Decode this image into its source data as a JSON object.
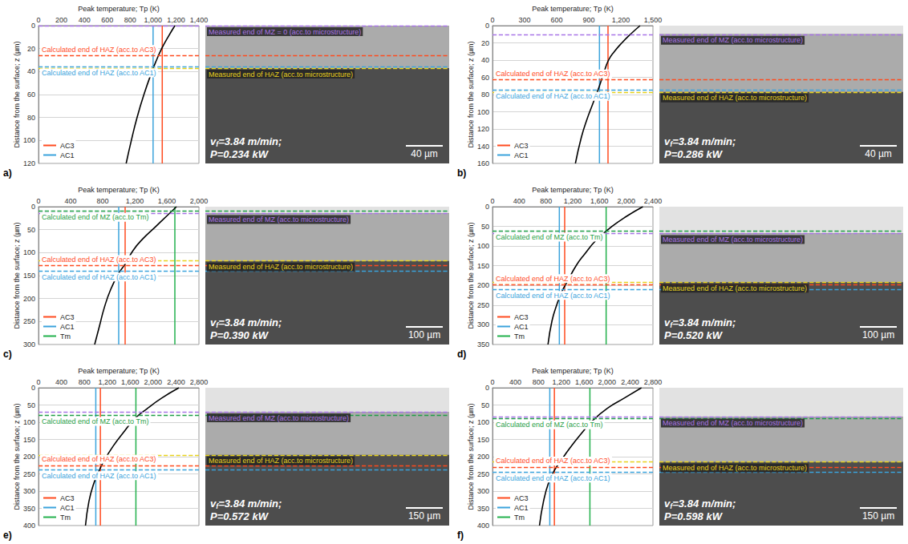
{
  "chart_data": [
    {
      "type": "line",
      "panel": "a)",
      "x_label": "Peak temperature; Tp (K)",
      "y_label": "Distance from the surface; z (µm)",
      "xlim": [
        0,
        1400
      ],
      "xticks": [
        0,
        200,
        400,
        600,
        800,
        1000,
        1200,
        1400
      ],
      "ylim": [
        0,
        120
      ],
      "yticks": [
        0,
        20,
        40,
        60,
        80,
        100,
        120
      ],
      "grid": true,
      "legend": "lower left",
      "series": [
        {
          "color": "#000000",
          "x": [
            1190,
            1130,
            1075,
            1030,
            990,
            920,
            860,
            810,
            765
          ],
          "y": [
            0,
            10,
            20,
            30,
            40,
            60,
            80,
            100,
            120
          ]
        }
      ],
      "reference_lines": [
        {
          "name": "AC3",
          "value": 1080,
          "color": "#ff4b1f"
        },
        {
          "name": "AC1",
          "value": 1000,
          "color": "#3ba3dc"
        }
      ],
      "calculated_lines": [
        {
          "text": "Calculated end of HAZ (acc.to AC3)",
          "value": 26,
          "color": "#ff4b1f"
        },
        {
          "text": "Calculated end of HAZ (acc.to AC1)",
          "value": 36,
          "color": "#3ba3dc"
        }
      ],
      "measured_lines": [
        {
          "text": "Measured end of MZ = 0 (acc.to microstructure)",
          "value": 0,
          "color": "#a874e6"
        },
        {
          "text": "Measured end of HAZ (acc.to microstructure)",
          "value": 37,
          "color": "#e8d21d"
        }
      ],
      "micrograph": {
        "speed": {
          "symbol": "v",
          "subscript": "f",
          "value": "=3.84 m/min;"
        },
        "power": "P=0.234 kW",
        "scale_bar": "40 µm"
      }
    },
    {
      "type": "line",
      "panel": "b)",
      "x_label": "Peak temperature; Tp (K)",
      "y_label": "Distance from the surface; z (µm)",
      "xlim": [
        0,
        1500
      ],
      "xticks": [
        0,
        300,
        600,
        900,
        1200,
        1500
      ],
      "ylim": [
        0,
        160
      ],
      "yticks": [
        0,
        20,
        40,
        60,
        80,
        100,
        120,
        140,
        160
      ],
      "grid": true,
      "legend": "lower left",
      "series": [
        {
          "color": "#000000",
          "x": [
            1380,
            1290,
            1210,
            1140,
            1085,
            1040,
            1000,
            940,
            880,
            830,
            775
          ],
          "y": [
            0,
            10,
            20,
            30,
            40,
            55,
            70,
            90,
            110,
            130,
            160
          ]
        }
      ],
      "reference_lines": [
        {
          "name": "AC3",
          "value": 1080,
          "color": "#ff4b1f"
        },
        {
          "name": "AC1",
          "value": 1000,
          "color": "#3ba3dc"
        }
      ],
      "calculated_lines": [
        {
          "text": "Calculated end of HAZ (acc.to AC3)",
          "value": 63,
          "color": "#ff4b1f"
        },
        {
          "text": "Calculated end of HAZ (acc.to AC1)",
          "value": 75,
          "color": "#3ba3dc"
        }
      ],
      "measured_lines": [
        {
          "text": "Measured end of MZ (acc.to microstructure)",
          "value": 10,
          "color": "#a874e6"
        },
        {
          "text": "Measured end of HAZ (acc.to microstructure)",
          "value": 77,
          "color": "#e8d21d"
        }
      ],
      "micrograph": {
        "speed": {
          "symbol": "v",
          "subscript": "f",
          "value": "=3.84 m/min;"
        },
        "power": "P=0.286 kW",
        "scale_bar": "40 µm"
      }
    },
    {
      "type": "line",
      "panel": "c)",
      "x_label": "Peak temperature; Tp (K)",
      "y_label": "Distance from the surface; z (µm)",
      "xlim": [
        0,
        2000
      ],
      "xticks": [
        0,
        400,
        800,
        1200,
        1600,
        2000
      ],
      "ylim": [
        0,
        300
      ],
      "yticks": [
        0,
        50,
        100,
        150,
        200,
        250,
        300
      ],
      "grid": true,
      "legend": "lower left",
      "series": [
        {
          "color": "#000000",
          "x": [
            1720,
            1600,
            1450,
            1300,
            1180,
            1080,
            1000,
            900,
            820,
            760,
            700
          ],
          "y": [
            0,
            20,
            45,
            70,
            95,
            125,
            145,
            180,
            220,
            260,
            300
          ]
        }
      ],
      "reference_lines": [
        {
          "name": "AC3",
          "value": 1080,
          "color": "#ff4b1f"
        },
        {
          "name": "AC1",
          "value": 1000,
          "color": "#3ba3dc"
        },
        {
          "name": "Tm",
          "value": 1700,
          "color": "#22b14c"
        }
      ],
      "calculated_lines": [
        {
          "text": "Calculated end of MZ (acc.to Tm)",
          "value": 10,
          "color": "#1f9e47"
        },
        {
          "text": "Calculated end of HAZ (acc.to AC3)",
          "value": 128,
          "color": "#ff4b1f"
        },
        {
          "text": "Calculated end of HAZ (acc.to AC1)",
          "value": 140,
          "color": "#3ba3dc"
        }
      ],
      "measured_lines": [
        {
          "text": "Measured end of MZ (acc.to microstructure)",
          "value": 15,
          "color": "#a874e6"
        },
        {
          "text": "Measured end of HAZ (acc.to microstructure)",
          "value": 118,
          "color": "#e8d21d"
        }
      ],
      "micrograph": {
        "speed": {
          "symbol": "v",
          "subscript": "f",
          "value": "=3.84 m/min;"
        },
        "power": "P=0.390 kW",
        "scale_bar": "100 µm"
      }
    },
    {
      "type": "line",
      "panel": "d)",
      "x_label": "Peak temperature; Tp (K)",
      "y_label": "Distance from the surface; z (µm)",
      "xlim": [
        0,
        2400
      ],
      "xticks": [
        0,
        400,
        800,
        1200,
        1600,
        2000,
        2400
      ],
      "ylim": [
        0,
        350
      ],
      "yticks": [
        0,
        50,
        100,
        150,
        200,
        250,
        300,
        350
      ],
      "grid": true,
      "legend": "lower left",
      "series": [
        {
          "color": "#000000",
          "x": [
            2250,
            2000,
            1750,
            1550,
            1380,
            1250,
            1120,
            1040,
            960,
            890,
            830
          ],
          "y": [
            0,
            25,
            55,
            85,
            120,
            150,
            190,
            215,
            250,
            290,
            350
          ]
        }
      ],
      "reference_lines": [
        {
          "name": "AC3",
          "value": 1080,
          "color": "#ff4b1f"
        },
        {
          "name": "AC1",
          "value": 1000,
          "color": "#3ba3dc"
        },
        {
          "name": "Tm",
          "value": 1700,
          "color": "#22b14c"
        }
      ],
      "calculated_lines": [
        {
          "text": "Calculated end of MZ (acc.to Tm)",
          "value": 62,
          "color": "#1f9e47"
        },
        {
          "text": "Calculated end of HAZ (acc.to AC3)",
          "value": 198,
          "color": "#ff4b1f"
        },
        {
          "text": "Calculated end of HAZ (acc.to AC1)",
          "value": 210,
          "color": "#3ba3dc"
        }
      ],
      "measured_lines": [
        {
          "text": "Measured end of MZ (acc.to microstructure)",
          "value": 68,
          "color": "#a874e6"
        },
        {
          "text": "Measured end of HAZ (acc.to microstructure)",
          "value": 192,
          "color": "#e8d21d"
        }
      ],
      "micrograph": {
        "speed": {
          "symbol": "v",
          "subscript": "f",
          "value": "=3.84 m/min;"
        },
        "power": "P=0.520 kW",
        "scale_bar": "100 µm"
      }
    },
    {
      "type": "line",
      "panel": "e)",
      "x_label": "Peak temperature; Tp (K)",
      "y_label": "Distance from the surface; z (µm)",
      "xlim": [
        0,
        2800
      ],
      "xticks": [
        0,
        400,
        800,
        1200,
        1600,
        2000,
        2400,
        2800
      ],
      "ylim": [
        0,
        400
      ],
      "yticks": [
        0,
        50,
        100,
        150,
        200,
        250,
        300,
        350,
        400
      ],
      "grid": true,
      "legend": "lower left",
      "series": [
        {
          "color": "#000000",
          "x": [
            2450,
            2150,
            1900,
            1680,
            1480,
            1300,
            1150,
            1060,
            960,
            880,
            820
          ],
          "y": [
            0,
            30,
            60,
            90,
            130,
            170,
            210,
            240,
            280,
            330,
            400
          ]
        }
      ],
      "reference_lines": [
        {
          "name": "AC3",
          "value": 1080,
          "color": "#ff4b1f"
        },
        {
          "name": "AC1",
          "value": 1000,
          "color": "#3ba3dc"
        },
        {
          "name": "Tm",
          "value": 1700,
          "color": "#22b14c"
        }
      ],
      "calculated_lines": [
        {
          "text": "Calculated end of MZ (acc.to Tm)",
          "value": 80,
          "color": "#1f9e47"
        },
        {
          "text": "Calculated end of HAZ (acc.to AC3)",
          "value": 225,
          "color": "#ff4b1f"
        },
        {
          "text": "Calculated end of HAZ (acc.to AC1)",
          "value": 238,
          "color": "#3ba3dc"
        }
      ],
      "measured_lines": [
        {
          "text": "Measured end of MZ (acc.to microstructure)",
          "value": 70,
          "color": "#a874e6"
        },
        {
          "text": "Measured end of HAZ (acc.to microstructure)",
          "value": 195,
          "color": "#e8d21d"
        }
      ],
      "micrograph": {
        "speed": {
          "symbol": "v",
          "subscript": "f",
          "value": "=3.84 m/min;"
        },
        "power": "P=0.572 kW",
        "scale_bar": "150 µm"
      }
    },
    {
      "type": "line",
      "panel": "f)",
      "x_label": "Peak temperature; Tp (K)",
      "y_label": "Distance from the surface; z (µm)",
      "xlim": [
        0,
        2800
      ],
      "xticks": [
        0,
        400,
        800,
        1200,
        1600,
        2000,
        2400,
        2800
      ],
      "ylim": [
        0,
        400
      ],
      "yticks": [
        0,
        50,
        100,
        150,
        200,
        250,
        300,
        350,
        400
      ],
      "grid": true,
      "legend": "lower left",
      "series": [
        {
          "color": "#000000",
          "x": [
            2600,
            2300,
            2000,
            1750,
            1540,
            1350,
            1180,
            1080,
            980,
            890,
            820
          ],
          "y": [
            0,
            30,
            60,
            95,
            135,
            175,
            215,
            240,
            275,
            330,
            400
          ]
        }
      ],
      "reference_lines": [
        {
          "name": "AC3",
          "value": 1080,
          "color": "#ff4b1f"
        },
        {
          "name": "AC1",
          "value": 1000,
          "color": "#3ba3dc"
        },
        {
          "name": "Tm",
          "value": 1700,
          "color": "#22b14c"
        }
      ],
      "calculated_lines": [
        {
          "text": "Calculated end of MZ (acc.to Tm)",
          "value": 90,
          "color": "#1f9e47"
        },
        {
          "text": "Calculated end of HAZ (acc.to AC3)",
          "value": 230,
          "color": "#ff4b1f"
        },
        {
          "text": "Calculated end of HAZ (acc.to AC1)",
          "value": 245,
          "color": "#3ba3dc"
        }
      ],
      "measured_lines": [
        {
          "text": "Measured end of MZ (acc.to microstructure)",
          "value": 85,
          "color": "#a874e6"
        },
        {
          "text": "Measured end of HAZ (acc.to microstructure)",
          "value": 215,
          "color": "#e8d21d"
        }
      ],
      "micrograph": {
        "speed": {
          "symbol": "v",
          "subscript": "f",
          "value": "=3.84 m/min;"
        },
        "power": "P=0.598 kW",
        "scale_bar": "150 µm"
      }
    }
  ]
}
